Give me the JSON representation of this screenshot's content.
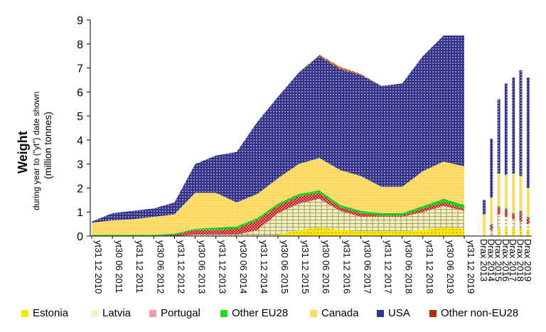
{
  "chart_data": {
    "type": "area",
    "ylabel": "Weight",
    "ylabel_sub1": "during year to (\"yt\") date shown",
    "ylabel_sub2": "(million tonnes)",
    "ylim": [
      0,
      9
    ],
    "yticks": [
      0,
      1,
      2,
      3,
      4,
      5,
      6,
      7,
      8,
      9
    ],
    "grid": false,
    "legend_position": "bottom",
    "x_tick_labels": [
      "yt31 12 2010",
      "yt30 06 2011",
      "yt31 12 2011",
      "yt30 06 2012",
      "yt31 12 2012",
      "yt30 06 2013",
      "yt31 12 2013",
      "yt30 06 2014",
      "yt31 12 2014",
      "yt30 06 2015",
      "yt31 12 2015",
      "yt30 06 2016",
      "yt31 12 2016",
      "yt30 06 2017",
      "yt31 12 2017",
      "yt30 06 2018",
      "yt31 12 2018",
      "yt30 06 2019",
      "yt31 12 2019"
    ],
    "series": [
      {
        "name": "Estonia",
        "color": "#ffe600",
        "mark": "#000000",
        "values": [
          0,
          0,
          0,
          0,
          0,
          0,
          0,
          0,
          0,
          0.05,
          0.25,
          0.35,
          0.25,
          0.2,
          0.2,
          0.2,
          0.25,
          0.35,
          0.3
        ]
      },
      {
        "name": "Latvia",
        "color": "#f2f2c0",
        "mark": "#777733",
        "values": [
          0,
          0,
          0,
          0,
          0,
          0.05,
          0.05,
          0.05,
          0.25,
          0.9,
          1.1,
          1.2,
          0.8,
          0.6,
          0.6,
          0.6,
          0.75,
          0.9,
          0.75
        ]
      },
      {
        "name": "Portugal",
        "color": "#e8a0a8",
        "mark": "#c00000",
        "values": [
          0,
          0,
          0,
          0,
          0.05,
          0.2,
          0.2,
          0.25,
          0.4,
          0.3,
          0.3,
          0.25,
          0.15,
          0.15,
          0.05,
          0.05,
          0.15,
          0.15,
          0.1
        ]
      },
      {
        "name": "Other EU28",
        "color": "#33ee33",
        "mark": "#00aa00",
        "values": [
          0.05,
          0.05,
          0.05,
          0.05,
          0.05,
          0.05,
          0.1,
          0.1,
          0.1,
          0.1,
          0.1,
          0.1,
          0.1,
          0.1,
          0.1,
          0.1,
          0.1,
          0.15,
          0.15
        ]
      },
      {
        "name": "Canada",
        "color": "#ffd966",
        "mark": "#ffffff",
        "values": [
          0.5,
          0.6,
          0.65,
          0.75,
          0.8,
          1.5,
          1.45,
          1.0,
          1.0,
          1.05,
          1.25,
          1.35,
          1.45,
          1.45,
          1.1,
          1.1,
          1.45,
          1.55,
          1.6
        ]
      },
      {
        "name": "USA",
        "color": "#333388",
        "mark": "#ffffff",
        "values": [
          0.05,
          0.3,
          0.35,
          0.35,
          0.5,
          1.2,
          1.55,
          2.1,
          3.0,
          3.4,
          3.8,
          4.25,
          4.2,
          4.2,
          4.2,
          4.3,
          4.8,
          5.25,
          5.45
        ]
      },
      {
        "name": "Other non-EU28",
        "color": "#ffcc99",
        "mark": "#aa3300",
        "values": [
          0,
          0,
          0,
          0,
          0,
          0,
          0,
          0,
          0,
          0,
          0,
          0.05,
          0.1,
          0.05,
          0,
          0,
          0,
          0,
          0
        ]
      }
    ],
    "drax": {
      "categories": [
        "Drax 2013",
        "Drax 2014",
        "Drax 2015",
        "Drax 2016",
        "Drax 2017",
        "Drax 2018",
        "Drax 2019"
      ],
      "series": [
        {
          "name": "Estonia",
          "values": [
            0,
            0,
            0.3,
            0.3,
            0.3,
            0.3,
            0.2
          ]
        },
        {
          "name": "Latvia",
          "values": [
            0,
            0.25,
            0.6,
            0.5,
            0.4,
            0.3,
            0.3
          ]
        },
        {
          "name": "Portugal",
          "values": [
            0,
            0.2,
            0.3,
            0.3,
            0.2,
            0.4,
            0.25
          ]
        },
        {
          "name": "Other EU28",
          "values": [
            0,
            0.05,
            0.05,
            0.05,
            0.05,
            0.05,
            0.05
          ]
        },
        {
          "name": "Canada",
          "values": [
            0.9,
            1.1,
            1.35,
            1.4,
            1.65,
            1.45,
            1.2
          ]
        },
        {
          "name": "USA",
          "values": [
            0.6,
            2.45,
            3.1,
            3.8,
            4.0,
            4.4,
            4.6
          ]
        },
        {
          "name": "Other non-EU28",
          "values": [
            0,
            0,
            0,
            0,
            0,
            0,
            0
          ]
        }
      ]
    }
  }
}
